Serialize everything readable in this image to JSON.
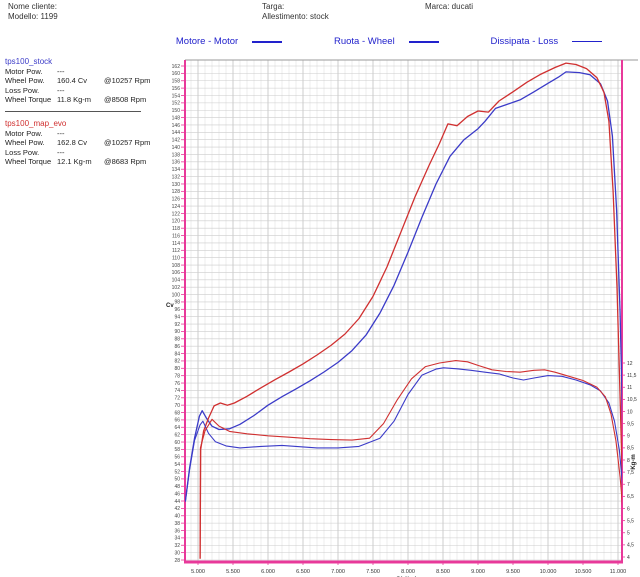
{
  "header": {
    "nome_cliente": "Nome cliente:",
    "modello": "Modello: 1199",
    "targa": "Targa:",
    "allestimento": "Allestimento: stock",
    "marca": "Marca: ducati"
  },
  "legend": [
    {
      "label": "Motore - Motor"
    },
    {
      "label": "Ruota - Wheel"
    },
    {
      "label": "Dissipata - Loss"
    }
  ],
  "runs": [
    {
      "name": "tps100_stock",
      "color": "#3b3bc8",
      "rows": [
        {
          "label": "Motor Pow.",
          "value": "---",
          "rpm": ""
        },
        {
          "label": "Wheel Pow.",
          "value": "160.4 Cv",
          "rpm": "@10257 Rpm"
        },
        {
          "label": "Loss Pow.",
          "value": "---",
          "rpm": ""
        },
        {
          "label": "Wheel Torque",
          "value": "11.8 Kg-m",
          "rpm": "@8508 Rpm"
        }
      ]
    },
    {
      "name": "tps100_map_evo",
      "color": "#d03030",
      "rows": [
        {
          "label": "Motor Pow.",
          "value": "---",
          "rpm": ""
        },
        {
          "label": "Wheel Pow.",
          "value": "162.8 Cv",
          "rpm": "@10257 Rpm"
        },
        {
          "label": "Loss Pow.",
          "value": "---",
          "rpm": ""
        },
        {
          "label": "Wheel Torque",
          "value": "12.1 Kg-m",
          "rpm": "@8683 Rpm"
        }
      ]
    }
  ],
  "chart_data": {
    "type": "line",
    "title": "",
    "x_axis": {
      "label": "Giri/min",
      "unit": "rpm",
      "min": 4814,
      "max": 11100,
      "tick_min": 5000,
      "tick_max": 11000,
      "major_tick": 500,
      "minor_tick": 100,
      "tick_labels": [
        "5.000",
        "5.500",
        "6.000",
        "6.500",
        "7.000",
        "7.500",
        "8.000",
        "8.500",
        "9.000",
        "9.500",
        "10.000",
        "10.500",
        "11.000"
      ]
    },
    "y_left": {
      "label": "Cv",
      "tick_min": 28,
      "tick_max": 162,
      "tick_step": 2
    },
    "y_right": {
      "label": "Kg-m",
      "tick_min": 4,
      "tick_max": 12,
      "tick_step": 0.5,
      "tick_labels": [
        "12",
        "11,5",
        "11",
        "10,5",
        "10",
        "9,5",
        "9",
        "8,5",
        "8",
        "7,5",
        "7",
        "6,5",
        "6",
        "5,5",
        "5",
        "4,5",
        "4"
      ]
    },
    "grid": {
      "h_color": "#cccccc",
      "v_major_color": "#b8b8b8",
      "v_minor_color": "#e6e6e6",
      "border_color": "#e8399a",
      "top_border_color": "#999999"
    },
    "series": [
      {
        "name": "stock-wheel-power",
        "run": "tps100_stock",
        "axis": "left",
        "unit": "Cv",
        "color": "#3b3bc8",
        "width": 1.3,
        "points": [
          [
            4820,
            44
          ],
          [
            4880,
            53
          ],
          [
            4950,
            61
          ],
          [
            5020,
            67
          ],
          [
            5060,
            68.5
          ],
          [
            5120,
            66.5
          ],
          [
            5200,
            64.3
          ],
          [
            5300,
            63.4
          ],
          [
            5450,
            63.6
          ],
          [
            5600,
            64.8
          ],
          [
            5800,
            67.2
          ],
          [
            6000,
            70
          ],
          [
            6200,
            72.3
          ],
          [
            6400,
            74.4
          ],
          [
            6600,
            76.6
          ],
          [
            6800,
            79
          ],
          [
            7000,
            81.6
          ],
          [
            7200,
            84.8
          ],
          [
            7400,
            89
          ],
          [
            7600,
            95
          ],
          [
            7800,
            102.5
          ],
          [
            8000,
            111.5
          ],
          [
            8200,
            121
          ],
          [
            8400,
            130
          ],
          [
            8600,
            137.5
          ],
          [
            8800,
            142
          ],
          [
            9000,
            145
          ],
          [
            9100,
            147
          ],
          [
            9250,
            150.5
          ],
          [
            9400,
            151.5
          ],
          [
            9600,
            152.8
          ],
          [
            9800,
            155
          ],
          [
            10000,
            157.3
          ],
          [
            10150,
            159
          ],
          [
            10257,
            160.4
          ],
          [
            10450,
            160.2
          ],
          [
            10600,
            159.6
          ],
          [
            10750,
            157.2
          ],
          [
            10850,
            152.5
          ],
          [
            10920,
            143
          ],
          [
            10980,
            123
          ],
          [
            11030,
            95
          ],
          [
            11070,
            62
          ],
          [
            11100,
            45
          ]
        ]
      },
      {
        "name": "evo-wheel-power",
        "run": "tps100_map_evo",
        "axis": "left",
        "unit": "Cv",
        "color": "#d03030",
        "width": 1.3,
        "points": [
          [
            5030,
            28.5
          ],
          [
            5038,
            58
          ],
          [
            5080,
            63
          ],
          [
            5150,
            66.5
          ],
          [
            5230,
            69.8
          ],
          [
            5320,
            70.6
          ],
          [
            5420,
            70
          ],
          [
            5520,
            70.6
          ],
          [
            5700,
            72.4
          ],
          [
            5900,
            74.7
          ],
          [
            6100,
            76.9
          ],
          [
            6300,
            79
          ],
          [
            6500,
            81.2
          ],
          [
            6700,
            83.6
          ],
          [
            6900,
            86.2
          ],
          [
            7100,
            89.3
          ],
          [
            7300,
            93.5
          ],
          [
            7500,
            99.5
          ],
          [
            7700,
            107.5
          ],
          [
            7900,
            117
          ],
          [
            8100,
            126.5
          ],
          [
            8300,
            135
          ],
          [
            8450,
            141
          ],
          [
            8570,
            146.3
          ],
          [
            8700,
            145.8
          ],
          [
            8850,
            148.3
          ],
          [
            9000,
            149.8
          ],
          [
            9150,
            149.5
          ],
          [
            9300,
            152.5
          ],
          [
            9500,
            155
          ],
          [
            9700,
            157.6
          ],
          [
            9900,
            159.8
          ],
          [
            10100,
            161.6
          ],
          [
            10257,
            162.8
          ],
          [
            10400,
            162.4
          ],
          [
            10550,
            161.3
          ],
          [
            10700,
            158.8
          ],
          [
            10800,
            154.8
          ],
          [
            10870,
            147
          ],
          [
            10930,
            128
          ],
          [
            10985,
            102
          ],
          [
            11030,
            72
          ],
          [
            11065,
            48
          ]
        ]
      },
      {
        "name": "stock-wheel-torque",
        "run": "tps100_stock",
        "axis": "right",
        "unit": "Kg-m",
        "color": "#3b3bc8",
        "width": 1.1,
        "points": [
          [
            4820,
            6.3
          ],
          [
            4880,
            7.6
          ],
          [
            4950,
            8.8
          ],
          [
            5030,
            9.45
          ],
          [
            5070,
            9.6
          ],
          [
            5150,
            9.1
          ],
          [
            5250,
            8.75
          ],
          [
            5400,
            8.58
          ],
          [
            5600,
            8.5
          ],
          [
            5900,
            8.56
          ],
          [
            6200,
            8.6
          ],
          [
            6400,
            8.56
          ],
          [
            6700,
            8.5
          ],
          [
            7000,
            8.5
          ],
          [
            7300,
            8.56
          ],
          [
            7600,
            8.9
          ],
          [
            7800,
            9.6
          ],
          [
            8000,
            10.7
          ],
          [
            8200,
            11.5
          ],
          [
            8400,
            11.75
          ],
          [
            8508,
            11.8
          ],
          [
            8700,
            11.76
          ],
          [
            8900,
            11.7
          ],
          [
            9100,
            11.62
          ],
          [
            9300,
            11.55
          ],
          [
            9500,
            11.38
          ],
          [
            9650,
            11.3
          ],
          [
            9800,
            11.38
          ],
          [
            10000,
            11.48
          ],
          [
            10200,
            11.45
          ],
          [
            10400,
            11.3
          ],
          [
            10600,
            11.1
          ],
          [
            10750,
            10.85
          ],
          [
            10870,
            10.35
          ],
          [
            10950,
            9.6
          ],
          [
            11020,
            8.4
          ],
          [
            11070,
            6.8
          ],
          [
            11110,
            5.2
          ],
          [
            11130,
            4.6
          ]
        ]
      },
      {
        "name": "evo-wheel-torque",
        "run": "tps100_map_evo",
        "axis": "right",
        "unit": "Kg-m",
        "color": "#d03030",
        "width": 1.1,
        "points": [
          [
            5030,
            3.95
          ],
          [
            5035,
            8.5
          ],
          [
            5100,
            9.2
          ],
          [
            5200,
            9.68
          ],
          [
            5300,
            9.4
          ],
          [
            5450,
            9.18
          ],
          [
            5700,
            9.08
          ],
          [
            6000,
            9.0
          ],
          [
            6300,
            8.94
          ],
          [
            6600,
            8.88
          ],
          [
            6900,
            8.84
          ],
          [
            7200,
            8.82
          ],
          [
            7450,
            8.9
          ],
          [
            7650,
            9.5
          ],
          [
            7850,
            10.5
          ],
          [
            8050,
            11.35
          ],
          [
            8250,
            11.85
          ],
          [
            8450,
            12.0
          ],
          [
            8683,
            12.1
          ],
          [
            8850,
            12.05
          ],
          [
            9000,
            11.9
          ],
          [
            9200,
            11.72
          ],
          [
            9400,
            11.65
          ],
          [
            9600,
            11.62
          ],
          [
            9800,
            11.7
          ],
          [
            9950,
            11.72
          ],
          [
            10100,
            11.62
          ],
          [
            10300,
            11.45
          ],
          [
            10500,
            11.28
          ],
          [
            10700,
            11.0
          ],
          [
            10820,
            10.6
          ],
          [
            10900,
            9.9
          ],
          [
            10970,
            8.8
          ],
          [
            11030,
            7.3
          ],
          [
            11080,
            5.6
          ],
          [
            11110,
            4.7
          ]
        ]
      }
    ]
  }
}
